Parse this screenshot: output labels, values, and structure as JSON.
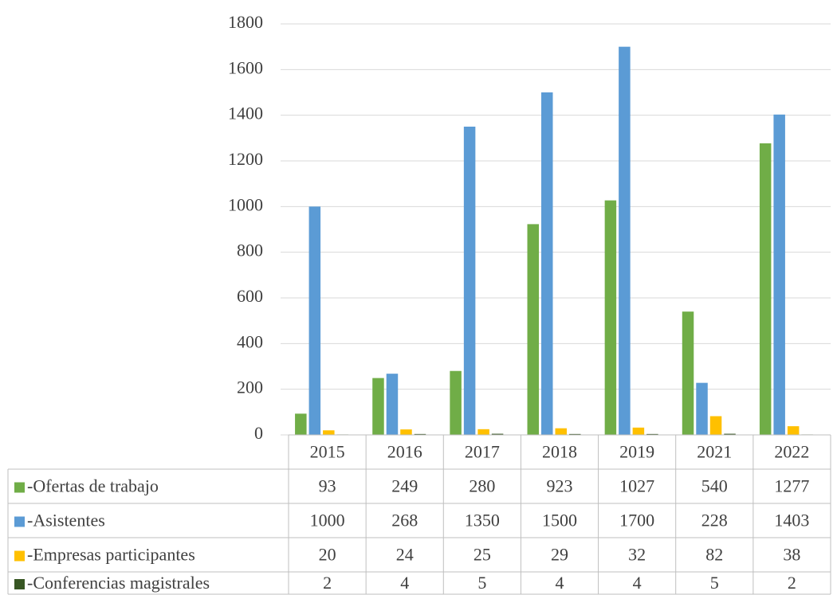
{
  "chart_data": {
    "type": "bar",
    "categories": [
      "2015",
      "2016",
      "2017",
      "2018",
      "2019",
      "2021",
      "2022"
    ],
    "series": [
      {
        "name": "-Ofertas de trabajo",
        "color": "#70ad47",
        "values": [
          93,
          249,
          280,
          923,
          1027,
          540,
          1277
        ]
      },
      {
        "name": "-Asistentes",
        "color": "#5b9bd5",
        "values": [
          1000,
          268,
          1350,
          1500,
          1700,
          228,
          1403
        ]
      },
      {
        "name": "-Empresas participantes",
        "color": "#ffc000",
        "values": [
          20,
          24,
          25,
          29,
          32,
          82,
          38
        ]
      },
      {
        "name": "-Conferencias magistrales",
        "color": "#375623",
        "values": [
          2,
          4,
          5,
          4,
          4,
          5,
          2
        ]
      }
    ],
    "ylim": [
      0,
      1800
    ],
    "yticks": [
      0,
      200,
      400,
      600,
      800,
      1000,
      1200,
      1400,
      1600,
      1800
    ],
    "grid": true
  }
}
